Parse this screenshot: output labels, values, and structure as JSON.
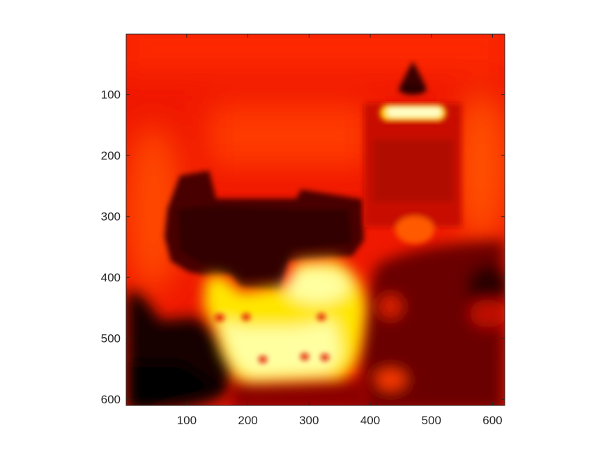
{
  "chart_data": {
    "type": "heatmap",
    "title": "",
    "xlabel": "",
    "ylabel": "",
    "colormap": "hot",
    "xlim": [
      1,
      620
    ],
    "ylim": [
      610,
      1
    ],
    "x_direction": "normal",
    "y_direction": "reverse",
    "xticks": [
      100,
      200,
      300,
      400,
      500,
      600
    ],
    "xtick_labels": [
      "100",
      "200",
      "300",
      "400",
      "500",
      "600"
    ],
    "yticks": [
      100,
      200,
      300,
      400,
      500,
      600
    ],
    "ytick_labels": [
      "100",
      "200",
      "300",
      "400",
      "500",
      "600"
    ],
    "colorbar": false,
    "grid": false,
    "image_description": "Depth/saliency-style heat map of a castle scene rendered with the 'hot' colormap"
  }
}
